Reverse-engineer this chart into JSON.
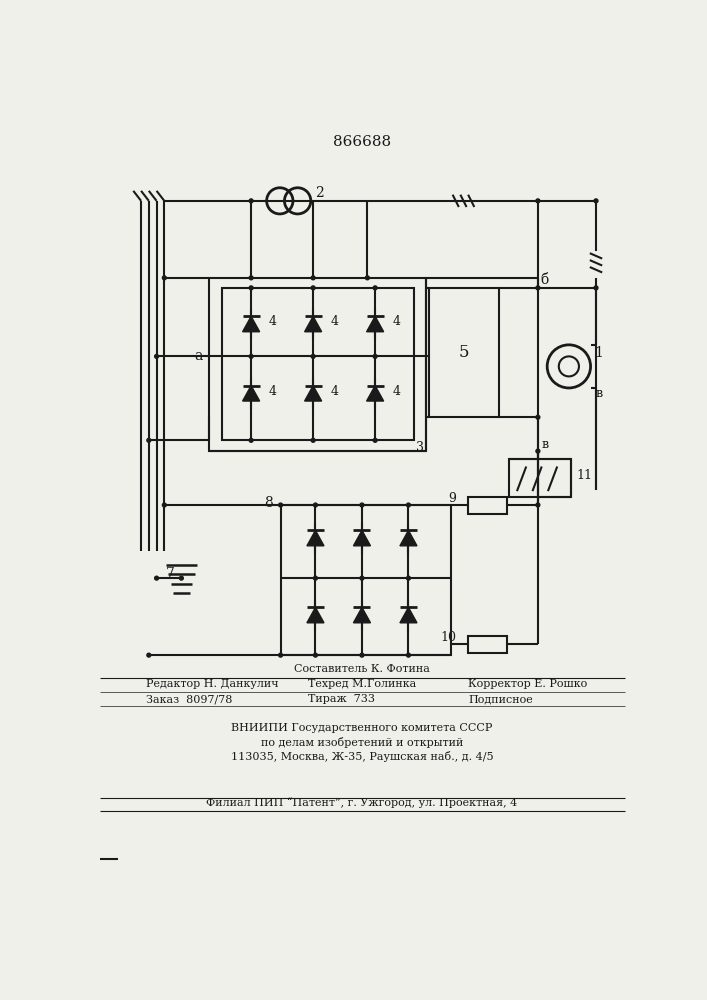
{
  "title": "866688",
  "bg": "#f0f0eb",
  "lc": "#1a1a1a",
  "lw": 1.5,
  "footer1": "Составитель К. Фотина",
  "footer2a": "Редактор Н. Данкулич",
  "footer2b": "Техред М.Голинка",
  "footer2c": "Корректор Е. Рошко",
  "footer3a": "Заказ  8097/78",
  "footer3b": "Тираж  733",
  "footer3c": "Подписное",
  "footer4": "ВНИИПИ Государственного комитета СССР",
  "footer5": "по делам изобретений и открытий",
  "footer6": "113035, Москва, Ж-35, Раушская наб., д. 4/5",
  "footer7": "Филиал ПИП “Патент”, г. Ужгород, ул. Проектная, 4"
}
